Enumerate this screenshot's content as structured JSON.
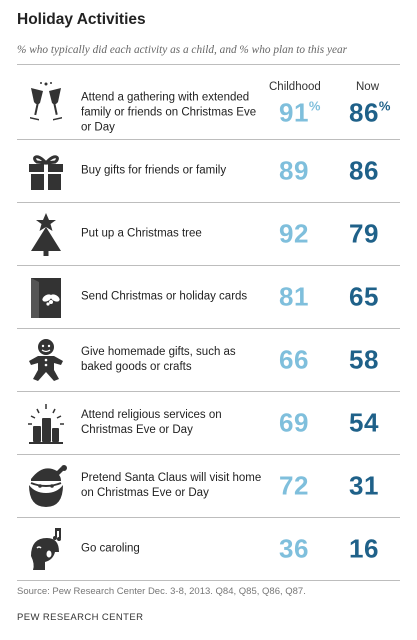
{
  "title": "Holiday Activities",
  "subtitle": "% who typically did each activity as a child, and % who plan to this year",
  "chart_data": {
    "type": "table",
    "columns": [
      "Childhood",
      "Now"
    ],
    "percent_suffix": "%",
    "rows": [
      {
        "label": "Attend a gathering with extended family or friends on Christmas Eve or Day",
        "childhood": 91,
        "now": 86,
        "icon": "champagne-glasses-icon"
      },
      {
        "label": "Buy gifts for friends or family",
        "childhood": 89,
        "now": 86,
        "icon": "gift-box-icon"
      },
      {
        "label": "Put up a Christmas tree",
        "childhood": 92,
        "now": 79,
        "icon": "christmas-tree-icon"
      },
      {
        "label": "Send Christmas or holiday cards",
        "childhood": 81,
        "now": 65,
        "icon": "holiday-card-icon"
      },
      {
        "label": "Give homemade gifts, such as baked goods or crafts",
        "childhood": 66,
        "now": 58,
        "icon": "gingerbread-man-icon"
      },
      {
        "label": "Attend religious services on Christmas Eve or Day",
        "childhood": 69,
        "now": 54,
        "icon": "candles-icon"
      },
      {
        "label": "Pretend Santa Claus will visit home on Christmas Eve or Day",
        "childhood": 72,
        "now": 31,
        "icon": "santa-claus-icon"
      },
      {
        "label": "Go caroling",
        "childhood": 36,
        "now": 16,
        "icon": "caroler-icon"
      }
    ]
  },
  "source": "Source: Pew Research Center Dec. 3-8, 2013. Q84, Q85, Q86, Q87.",
  "credit": "PEW RESEARCH CENTER",
  "colors": {
    "childhood": "#7fbfdc",
    "now": "#1f6189"
  }
}
